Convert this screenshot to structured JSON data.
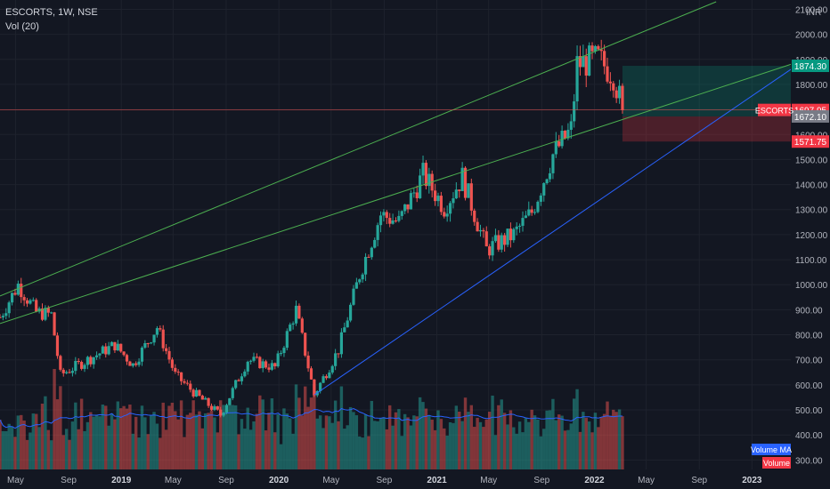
{
  "legend": {
    "title": "ESCORTS, 1W, NSE",
    "volume_indicator": "Vol (20)"
  },
  "chart_data": {
    "type": "candlestick",
    "symbol": "ESCORTS",
    "interval": "1W",
    "exchange": "NSE",
    "y_axis": {
      "currency": "INR",
      "range": [
        280,
        2130
      ],
      "ticks": [
        "300.00",
        "400.00",
        "500.00",
        "600.00",
        "700.00",
        "800.00",
        "900.00",
        "1000.00",
        "1100.00",
        "1200.00",
        "1300.00",
        "1400.00",
        "1500.00",
        "1600.00",
        "1700.00",
        "1800.00",
        "1900.00",
        "2000.00",
        "2100.00"
      ]
    },
    "x_axis": {
      "range": [
        "2018-03-26",
        "2023-04-01"
      ],
      "ticks": [
        {
          "label": "May",
          "date": "2018-05-01"
        },
        {
          "label": "Sep",
          "date": "2018-09-01"
        },
        {
          "label": "2019",
          "date": "2019-01-01"
        },
        {
          "label": "May",
          "date": "2019-05-01"
        },
        {
          "label": "Sep",
          "date": "2019-09-01"
        },
        {
          "label": "2020",
          "date": "2020-01-01"
        },
        {
          "label": "May",
          "date": "2020-05-01"
        },
        {
          "label": "Sep",
          "date": "2020-09-01"
        },
        {
          "label": "2021",
          "date": "2021-01-01"
        },
        {
          "label": "May",
          "date": "2021-05-01"
        },
        {
          "label": "Sep",
          "date": "2021-09-01"
        },
        {
          "label": "2022",
          "date": "2022-01-01"
        },
        {
          "label": "May",
          "date": "2022-05-01"
        },
        {
          "label": "Sep",
          "date": "2022-09-01"
        },
        {
          "label": "2023",
          "date": "2023-01-01"
        }
      ]
    },
    "price_key_points": [
      {
        "date": "2018-03-26",
        "close": 870
      },
      {
        "date": "2018-05-07",
        "close": 1000
      },
      {
        "date": "2018-06-18",
        "close": 890
      },
      {
        "date": "2018-07-23",
        "close": 880
      },
      {
        "date": "2018-08-13",
        "close": 640
      },
      {
        "date": "2018-10-15",
        "close": 700
      },
      {
        "date": "2018-12-17",
        "close": 760
      },
      {
        "date": "2019-01-28",
        "close": 680
      },
      {
        "date": "2019-03-25",
        "close": 830
      },
      {
        "date": "2019-05-06",
        "close": 640
      },
      {
        "date": "2019-06-24",
        "close": 560
      },
      {
        "date": "2019-08-19",
        "close": 480
      },
      {
        "date": "2019-10-21",
        "close": 700
      },
      {
        "date": "2019-12-23",
        "close": 670
      },
      {
        "date": "2020-02-10",
        "close": 900
      },
      {
        "date": "2020-03-23",
        "close": 560
      },
      {
        "date": "2020-05-18",
        "close": 740
      },
      {
        "date": "2020-07-06",
        "close": 1040
      },
      {
        "date": "2020-08-24",
        "close": 1280
      },
      {
        "date": "2020-10-05",
        "close": 1250
      },
      {
        "date": "2020-11-30",
        "close": 1440
      },
      {
        "date": "2021-01-18",
        "close": 1310
      },
      {
        "date": "2021-03-01",
        "close": 1430
      },
      {
        "date": "2021-04-26",
        "close": 1140
      },
      {
        "date": "2021-06-28",
        "close": 1200
      },
      {
        "date": "2021-08-09",
        "close": 1290
      },
      {
        "date": "2021-09-27",
        "close": 1520
      },
      {
        "date": "2021-11-08",
        "close": 1620
      },
      {
        "date": "2021-11-22",
        "close": 1880
      },
      {
        "date": "2022-01-10",
        "close": 1900
      },
      {
        "date": "2022-02-14",
        "close": 1840
      },
      {
        "date": "2022-03-07",
        "close": 1698
      }
    ],
    "trend_lines": [
      {
        "color": "#4caf50",
        "from": {
          "date": "2018-03-26",
          "price": 955
        },
        "to": {
          "date": "2022-10-10",
          "price": 2130
        }
      },
      {
        "color": "#4caf50",
        "from": {
          "date": "2018-03-26",
          "price": 845
        },
        "to": {
          "date": "2023-04-01",
          "price": 1880
        }
      },
      {
        "color": "#2962ff",
        "from": {
          "date": "2020-03-23",
          "price": 560
        },
        "to": {
          "date": "2023-04-01",
          "price": 1860
        }
      }
    ],
    "position": {
      "entry": 1672.1,
      "target": 1874.3,
      "stop": 1571.75,
      "start_date": "2022-03-07",
      "end_date": "2023-04-01"
    },
    "price_labels": {
      "last_symbol": "ESCORTS",
      "last_price": "1697.95",
      "target": "1874.30",
      "entry": "1672.10",
      "stop": "1571.75"
    },
    "volume": {
      "series_label": "Volume",
      "ma_label": "Volume MA"
    }
  },
  "colors": {
    "background": "#131722",
    "grid": "#1e222d",
    "up": "#26a69a",
    "down": "#ef5350",
    "ma": "#2962ff",
    "text": "#b2b5be"
  }
}
